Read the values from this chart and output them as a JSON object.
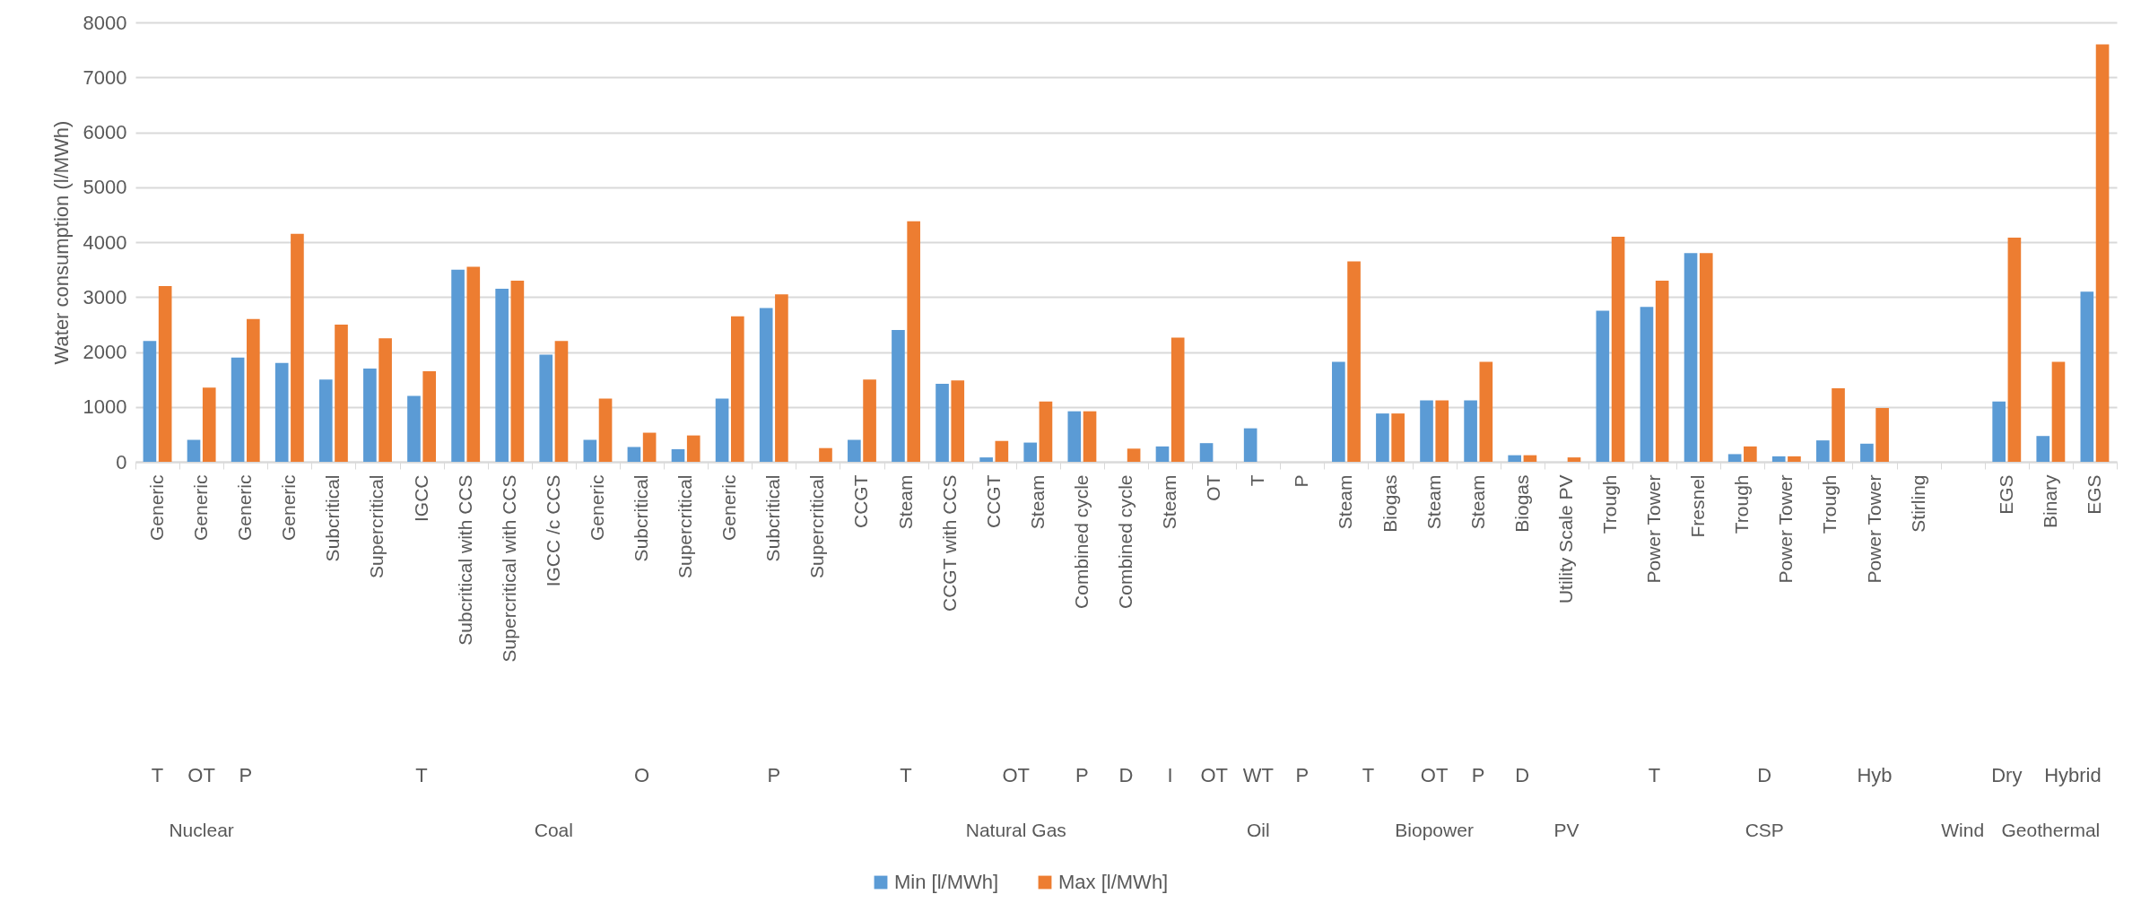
{
  "chart_data": {
    "type": "bar",
    "ylabel": "Water consumption (l/MWh)",
    "categories": [
      "Generic",
      "Generic",
      "Generic",
      "Generic",
      "Subcritical",
      "Supercritical",
      "IGCC",
      "Subcritical with CCS",
      "Supercritical with CCS",
      "IGCC /c CCS",
      "Generic",
      "Subcritical",
      "Supercritical",
      "Generic",
      "Subcritical",
      "Supercritical",
      "CCGT",
      "Steam",
      "CCGT with CCS",
      "CCGT",
      "Steam",
      "Combined cycle",
      "Combined cycle",
      "Steam",
      "OT",
      "T",
      "P",
      "Steam",
      "Biogas",
      "Steam",
      "Steam",
      "Biogas",
      "Utility Scale PV",
      "Trough",
      "Power Tower",
      "Fresnel",
      "Trough",
      "Power Tower",
      "Trough",
      "Power Tower",
      "Stirling",
      null,
      "EGS",
      "Binary",
      "EGS"
    ],
    "series": [
      {
        "name": "Min [l/MWh]",
        "color": "#5b9bd5",
        "values": [
          2200,
          400,
          1900,
          1800,
          1500,
          1700,
          1200,
          3500,
          3150,
          1950,
          400,
          270,
          230,
          1150,
          2800,
          null,
          400,
          2400,
          1420,
          80,
          350,
          920,
          null,
          280,
          340,
          610,
          null,
          1820,
          880,
          1120,
          1120,
          120,
          null,
          2750,
          2820,
          3800,
          140,
          100,
          390,
          330,
          null,
          null,
          1100,
          470,
          3100
        ]
      },
      {
        "name": "Max [l/MWh]",
        "color": "#ed7d31",
        "values": [
          3200,
          1350,
          2600,
          4150,
          2500,
          2250,
          1650,
          3550,
          3300,
          2200,
          1150,
          530,
          480,
          2650,
          3050,
          250,
          1500,
          4380,
          1480,
          380,
          1100,
          920,
          240,
          2260,
          null,
          null,
          null,
          3650,
          880,
          1120,
          1820,
          120,
          80,
          4100,
          3300,
          3800,
          280,
          100,
          1340,
          980,
          null,
          null,
          4080,
          1820,
          7600
        ]
      }
    ],
    "ylim": [
      0,
      8000
    ],
    "yticks": [
      0,
      1000,
      2000,
      3000,
      4000,
      5000,
      6000,
      7000,
      8000
    ],
    "grid": "y",
    "legend": "bottom",
    "annotations": [
      "T",
      "OT",
      "P",
      "T",
      "O",
      "P",
      "T",
      "OT",
      "P",
      "D",
      "I",
      "OT",
      "WT",
      "P",
      "T",
      "OT",
      "P",
      "D",
      "T",
      "D",
      "Hyb",
      "Dry",
      "Hybrid",
      "Nuclear",
      "Coal",
      "Natural Gas",
      "Oil",
      "Biopower",
      "PV",
      "CSP",
      "Wind",
      "Geothermal"
    ]
  }
}
